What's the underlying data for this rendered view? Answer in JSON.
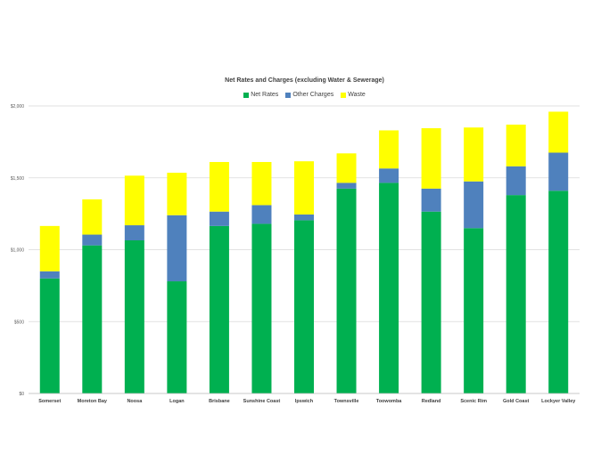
{
  "chart_data": {
    "type": "bar",
    "stacked": true,
    "title": "Net Rates and Charges (excluding Water & Sewerage)",
    "xlabel": "",
    "ylabel": "",
    "ylim": [
      0,
      2000
    ],
    "y_ticks": [
      "$0",
      "$500",
      "$1,000",
      "$1,500",
      "$2,000"
    ],
    "y_tick_values": [
      0,
      500,
      1000,
      1500,
      2000
    ],
    "grid": true,
    "legend_position": "top",
    "categories": [
      "Somerset",
      "Moreton Bay",
      "Noosa",
      "Logan",
      "Brisbane",
      "Sunshine Coast",
      "Ipswich",
      "Townsville",
      "Toowomba",
      "Redland",
      "Scenic Rim",
      "Gold Coast",
      "Lockyer Valley"
    ],
    "series": [
      {
        "name": "Net Rates",
        "color": "#00b050",
        "values": [
          800,
          1030,
          1065,
          780,
          1165,
          1180,
          1205,
          1425,
          1465,
          1265,
          1150,
          1380,
          1410
        ]
      },
      {
        "name": "Other Charges",
        "color": "#4f81bd",
        "values": [
          50,
          75,
          105,
          460,
          100,
          130,
          40,
          40,
          100,
          160,
          325,
          200,
          265
        ]
      },
      {
        "name": "Waste",
        "color": "#ffff00",
        "values": [
          315,
          245,
          345,
          295,
          345,
          300,
          370,
          205,
          265,
          420,
          375,
          290,
          285
        ]
      }
    ]
  }
}
